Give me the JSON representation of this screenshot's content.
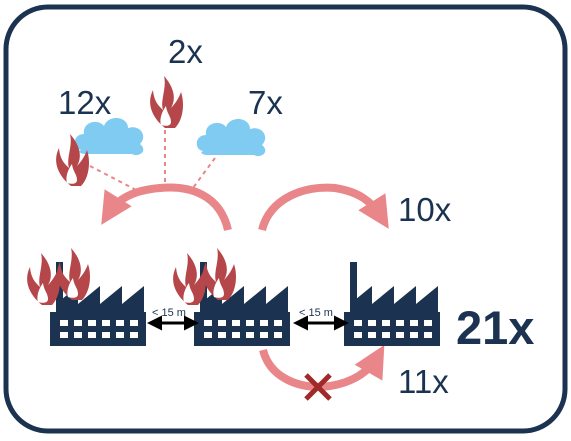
{
  "labels": {
    "fire_top": "2x",
    "fire_left": "12x",
    "cloud_right": "7x",
    "arrow_upper_right": "10x",
    "arrow_lower_right": "11x",
    "total": "21x"
  },
  "distances": {
    "left_gap": "< 15 m",
    "right_gap": "< 15 m"
  },
  "colors": {
    "frame": "#1b3350",
    "factory": "#1b3350",
    "fire": "#b5474b",
    "cloud": "#7fcbf1",
    "arrow": "#e8868a",
    "cross": "#a02a2a"
  }
}
